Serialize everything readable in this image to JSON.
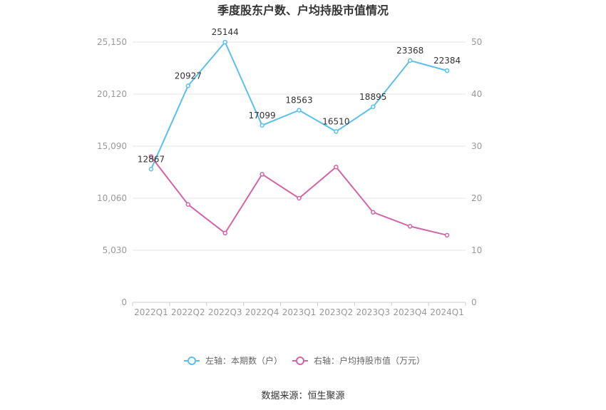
{
  "chart_data": {
    "type": "line",
    "title": "季度股东户数、户均持股市值情况",
    "categories": [
      "2022Q1",
      "2022Q2",
      "2022Q3",
      "2022Q4",
      "2023Q1",
      "2023Q2",
      "2023Q3",
      "2023Q4",
      "2024Q1"
    ],
    "left_axis": {
      "min": 0,
      "max": 25150,
      "ticks": [
        "0",
        "5,030",
        "10,060",
        "15,090",
        "20,120",
        "25,150"
      ]
    },
    "right_axis": {
      "min": 0,
      "max": 50,
      "ticks": [
        "0",
        "10",
        "20",
        "30",
        "40",
        "50"
      ]
    },
    "grid": true,
    "legend_position": "bottom",
    "series": [
      {
        "name": "左轴：本期数（户）",
        "axis": "left",
        "color": "#5bc0eb",
        "values": [
          12867,
          20927,
          25144,
          17099,
          18563,
          16510,
          18895,
          23368,
          22384
        ],
        "labels": [
          "12867",
          "20927",
          "25144",
          "17099",
          "18563",
          "16510",
          "18895",
          "23368",
          "22384"
        ]
      },
      {
        "name": "右轴：户均持股市值（万元）",
        "axis": "right",
        "color": "#d264a8",
        "values": [
          28.0,
          18.8,
          13.3,
          24.6,
          20.0,
          26.0,
          17.3,
          14.6,
          12.9
        ]
      }
    ],
    "source": "数据来源：恒生聚源"
  }
}
